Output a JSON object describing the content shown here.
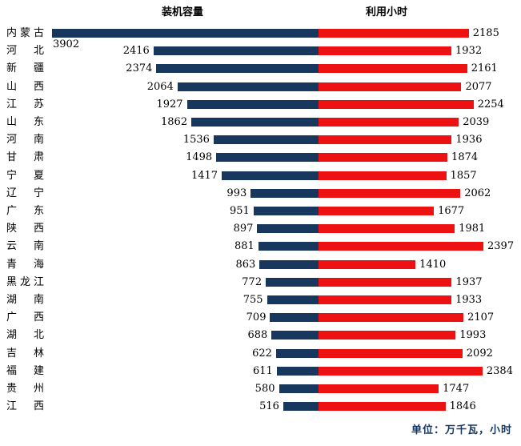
{
  "header": {
    "left_series_title": "装机容量",
    "right_series_title": "利用小时"
  },
  "footer": {
    "unit_note": "单位：万千瓦，小时"
  },
  "colors": {
    "capacity_bar": "#17375E",
    "hours_bar": "#EE1111",
    "note_text": "#17375E",
    "value_text": "#000000"
  },
  "chart_data": {
    "type": "bar",
    "variant": "diverging-horizontal-tornado",
    "title_left": "装机容量",
    "title_right": "利用小时",
    "unit_note": "单位：万千瓦，小时",
    "legend_position": "column headers above each side",
    "grid": false,
    "categories": [
      "内蒙古",
      "河北",
      "新疆",
      "山西",
      "江苏",
      "山东",
      "河南",
      "甘肃",
      "宁夏",
      "辽宁",
      "广东",
      "陕西",
      "云南",
      "青海",
      "黑龙江",
      "湖南",
      "广西",
      "湖北",
      "吉林",
      "福建",
      "贵州",
      "江西"
    ],
    "series": [
      {
        "name": "装机容量",
        "side": "left",
        "color": "#17375E",
        "values": [
          3902,
          2416,
          2374,
          2064,
          1927,
          1862,
          1536,
          1498,
          1417,
          993,
          951,
          897,
          881,
          863,
          772,
          755,
          709,
          688,
          622,
          611,
          580,
          516
        ]
      },
      {
        "name": "利用小时",
        "side": "right",
        "color": "#EE1111",
        "values": [
          2185,
          1932,
          2161,
          2077,
          2254,
          2039,
          1936,
          1874,
          1857,
          2062,
          1677,
          1981,
          2397,
          1410,
          1937,
          1933,
          2107,
          1993,
          2092,
          2384,
          1747,
          1846
        ]
      }
    ],
    "left_axis_max": 3902,
    "right_axis_max": 2397,
    "value_labels": "at outer end of each bar; first left value (3902) placed below its bar"
  }
}
